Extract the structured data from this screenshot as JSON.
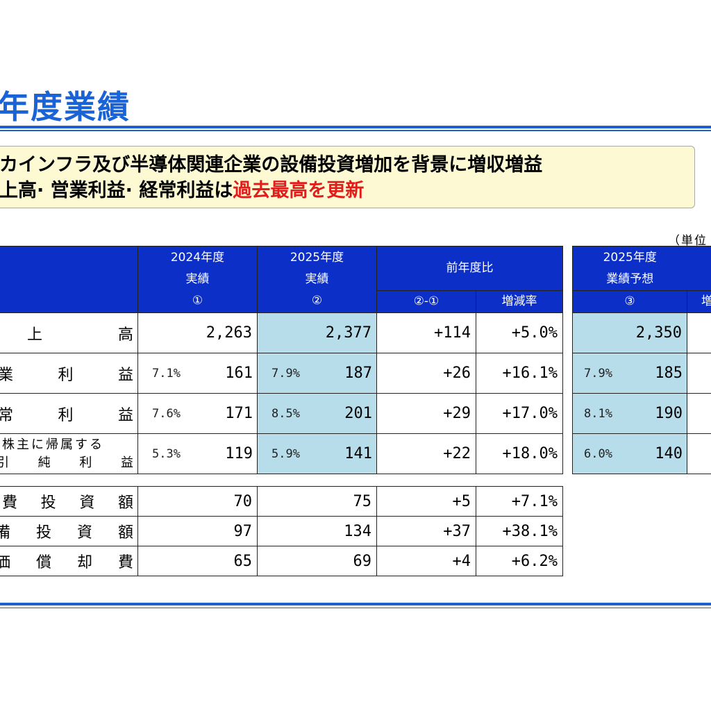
{
  "title": "年度業績",
  "summary": {
    "line1": "カインフラ及び半導体関連企業の設備投資増加を背景に増収増益",
    "line2_black": "上高· 営業利益· 経常利益は",
    "line2_red": "過去最高を更新"
  },
  "unit_label": "（単位",
  "table": {
    "headers": {
      "fy2024": [
        "2024年度",
        "実績",
        "①"
      ],
      "fy2025": [
        "2025年度",
        "実績",
        "②"
      ],
      "yoy": "前年度比",
      "diff": "②-①",
      "rate": "増減率"
    },
    "rows": [
      {
        "label": [
          "上",
          "高"
        ],
        "pct24": "",
        "v24": "2,263",
        "pct25": "",
        "v25": "2,377",
        "diff": "+114",
        "rate": "+5.0%"
      },
      {
        "label": [
          "業",
          "利",
          "益"
        ],
        "pct24": "7.1%",
        "v24": "161",
        "pct25": "7.9%",
        "v25": "187",
        "diff": "+26",
        "rate": "+16.1%"
      },
      {
        "label": [
          "常",
          "利",
          "益"
        ],
        "pct24": "7.6%",
        "v24": "171",
        "pct25": "8.5%",
        "v25": "201",
        "diff": "+29",
        "rate": "+17.0%"
      },
      {
        "label_line1": "株主に帰属する",
        "label_line2": [
          "引",
          "純",
          "利",
          "益"
        ],
        "pct24": "5.3%",
        "v24": "119",
        "pct25": "5.9%",
        "v25": "141",
        "diff": "+22",
        "rate": "+18.0%"
      }
    ],
    "lower_rows": [
      {
        "label": [
          "費",
          "投",
          "資",
          "額"
        ],
        "v24": "70",
        "v25": "75",
        "diff": "+5",
        "rate": "+7.1%"
      },
      {
        "label": [
          "備",
          "投",
          "資",
          "額"
        ],
        "v24": "97",
        "v25": "134",
        "diff": "+37",
        "rate": "+38.1%"
      },
      {
        "label": [
          "価",
          "償",
          "却",
          "費"
        ],
        "v24": "65",
        "v25": "69",
        "diff": "+4",
        "rate": "+6.2%"
      }
    ]
  },
  "forecast": {
    "header": [
      "2025年度",
      "業績予想",
      "③"
    ],
    "header_right": "増",
    "rows": [
      {
        "pct": "",
        "value": "2,350"
      },
      {
        "pct": "7.9%",
        "value": "185"
      },
      {
        "pct": "8.1%",
        "value": "190"
      },
      {
        "pct": "6.0%",
        "value": "140"
      }
    ]
  }
}
